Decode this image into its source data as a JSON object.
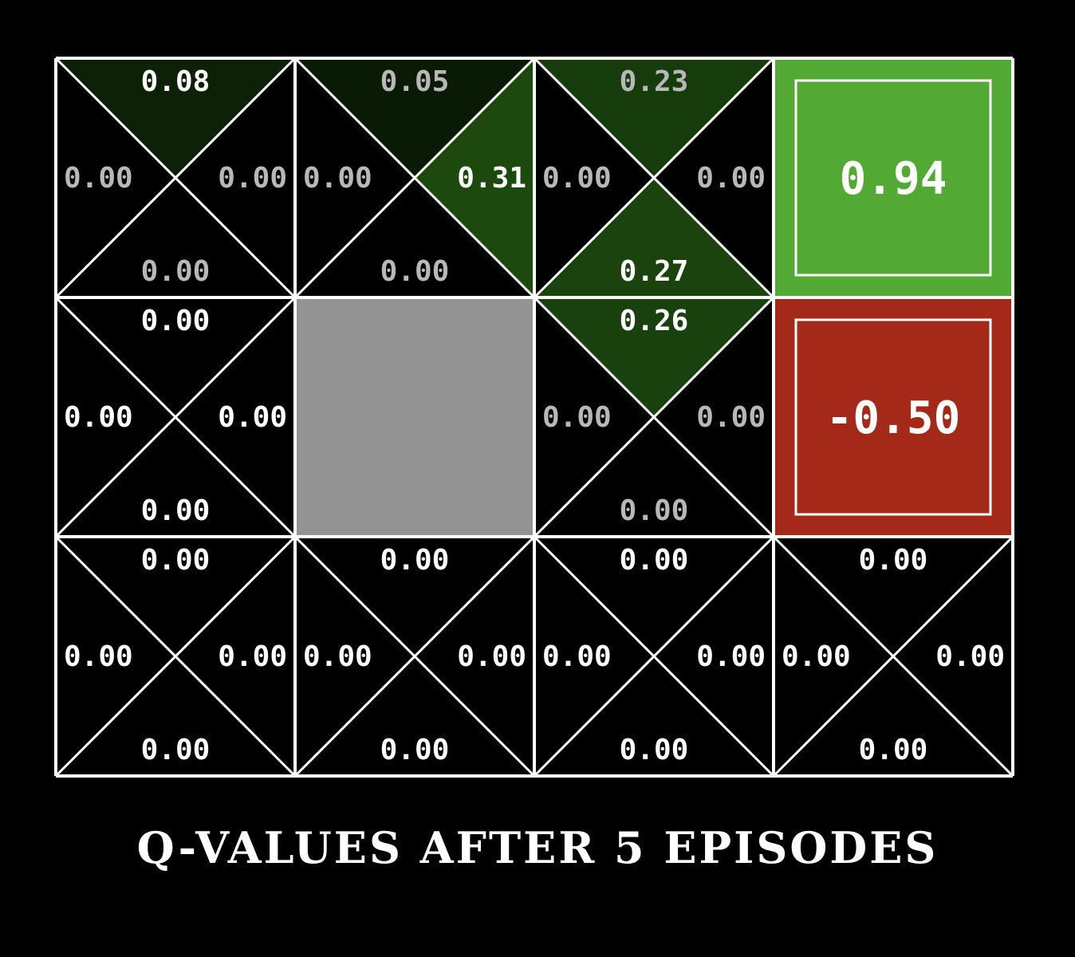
{
  "caption": "Q-VALUES AFTER 5 EPISODES",
  "colors": {
    "background": "#000000",
    "grid_line": "#ffffff",
    "wall": "#939393",
    "positive_terminal": "#52a934",
    "negative_terminal": "#a42918",
    "value_highlight": "#ffffff",
    "value_dim": "#b8b8b8"
  },
  "grid": {
    "rows": 3,
    "cols": 4,
    "cells": [
      [
        {
          "type": "q",
          "top": "0.08",
          "right": "0.00",
          "bottom": "0.00",
          "left": "0.00",
          "best": "top"
        },
        {
          "type": "q",
          "top": "0.05",
          "right": "0.31",
          "bottom": "0.00",
          "left": "0.00",
          "best": "right"
        },
        {
          "type": "q",
          "top": "0.23",
          "right": "0.00",
          "bottom": "0.27",
          "left": "0.00",
          "best": "bottom"
        },
        {
          "type": "terminal",
          "value": "0.94",
          "sign": "positive"
        }
      ],
      [
        {
          "type": "q",
          "top": "0.00",
          "right": "0.00",
          "bottom": "0.00",
          "left": "0.00",
          "best": "all"
        },
        {
          "type": "wall"
        },
        {
          "type": "q",
          "top": "0.26",
          "right": "0.00",
          "bottom": "0.00",
          "left": "0.00",
          "best": "top"
        },
        {
          "type": "terminal",
          "value": "-0.50",
          "sign": "negative"
        }
      ],
      [
        {
          "type": "q",
          "top": "0.00",
          "right": "0.00",
          "bottom": "0.00",
          "left": "0.00",
          "best": "all"
        },
        {
          "type": "q",
          "top": "0.00",
          "right": "0.00",
          "bottom": "0.00",
          "left": "0.00",
          "best": "all"
        },
        {
          "type": "q",
          "top": "0.00",
          "right": "0.00",
          "bottom": "0.00",
          "left": "0.00",
          "best": "all"
        },
        {
          "type": "q",
          "top": "0.00",
          "right": "0.00",
          "bottom": "0.00",
          "left": "0.00",
          "best": "all"
        }
      ]
    ]
  }
}
